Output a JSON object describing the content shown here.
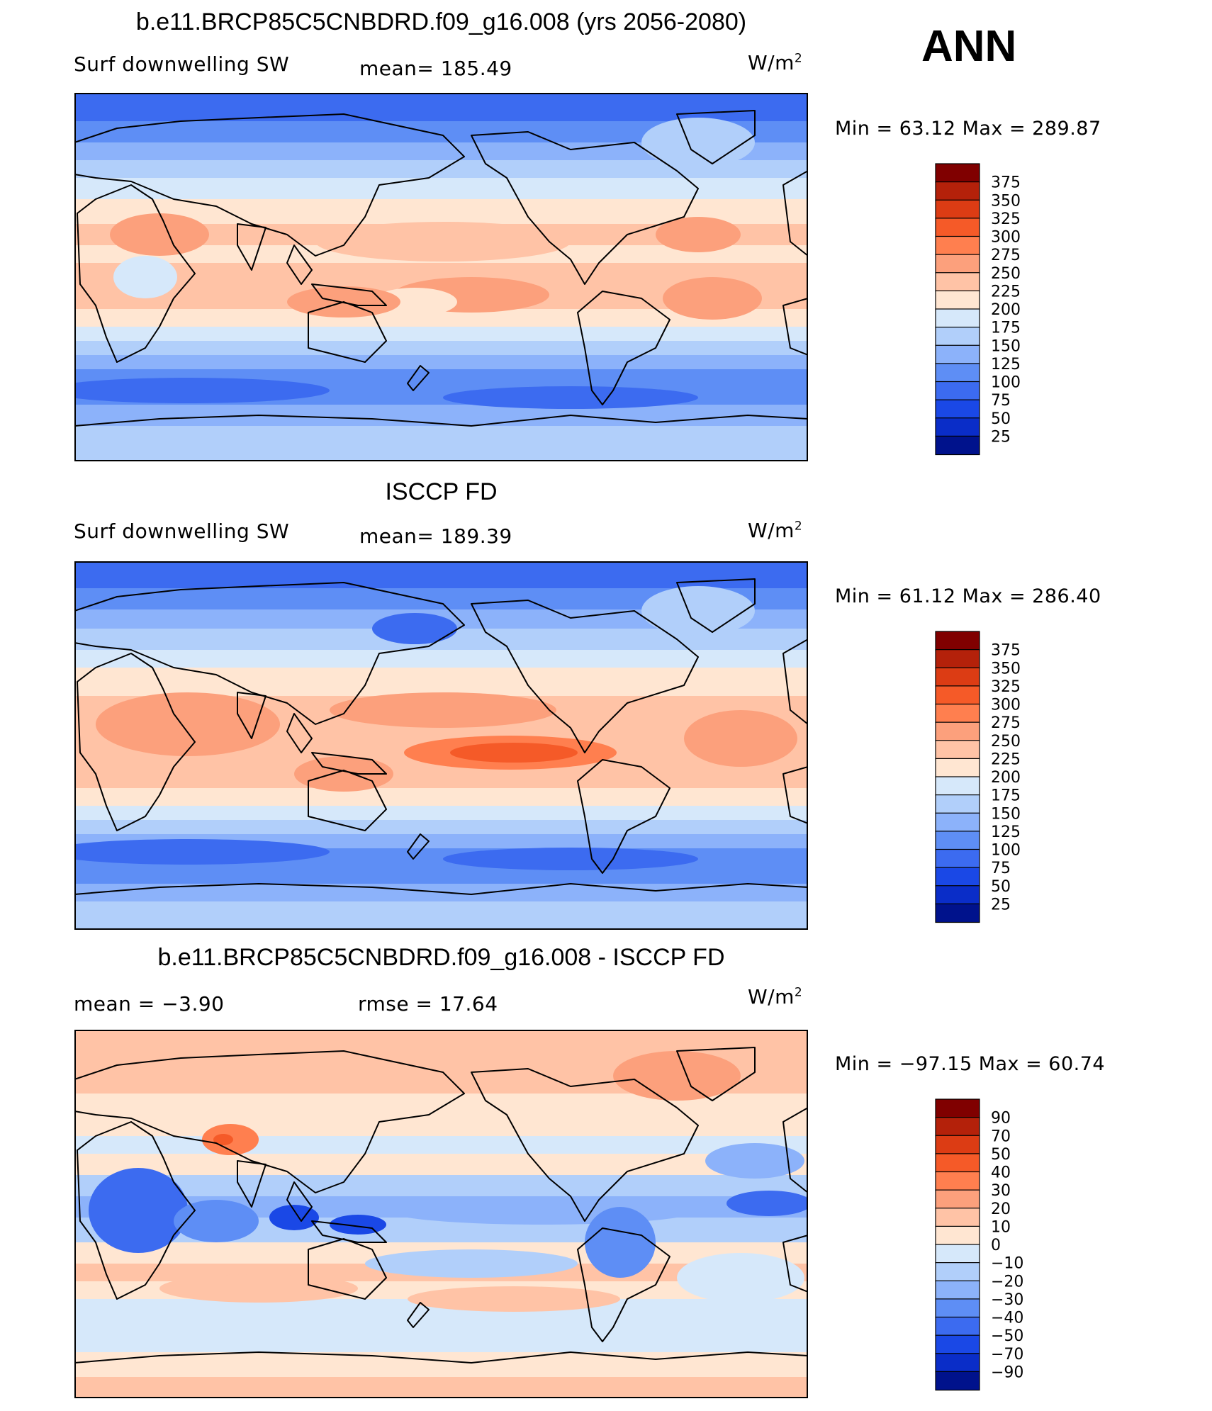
{
  "figure": {
    "season": "ANN",
    "units_base": "W/m",
    "units_exp": "2"
  },
  "panels": [
    {
      "title": "b.e11.BRCP85C5CNBDRD.f09_g16.008 (yrs 2056-2080)",
      "variable": "Surf  downwelling SW",
      "stat1": "mean=  185.49",
      "stat2": "",
      "minmax": "Min  =    63.12  Max  =  289.87"
    },
    {
      "title": "ISCCP FD",
      "variable": "Surf  downwelling SW",
      "stat1": "mean=  189.39",
      "stat2": "",
      "minmax": "Min  =    61.12  Max  =  286.40"
    },
    {
      "title": "b.e11.BRCP85C5CNBDRD.f09_g16.008 - ISCCP FD",
      "variable": "",
      "stat1": "mean  =     −3.90",
      "stat2": "rmse  =    17.64",
      "minmax": "Min  = −97.15  Max  =    60.74"
    }
  ],
  "chart_data": [
    {
      "type": "heatmap",
      "title": "b.e11.BRCP85C5CNBDRD.f09_g16.008 (yrs 2056-2080)",
      "subtitle": "Surf  downwelling SW",
      "units": "W/m2",
      "mean": 185.49,
      "min": 63.12,
      "max": 289.87,
      "colorbar_levels": [
        375,
        350,
        325,
        300,
        275,
        250,
        225,
        200,
        175,
        150,
        125,
        100,
        75,
        50,
        25
      ],
      "colorbar_colors": [
        "#800000",
        "#B4210A",
        "#DC3C14",
        "#F55A28",
        "#FF7F4F",
        "#FCA07C",
        "#FFC3A6",
        "#FFE6D2",
        "#D6E8FA",
        "#B1CFFA",
        "#8CB2FA",
        "#5E8EF5",
        "#3C6BF0",
        "#1A48E6",
        "#0A2DC8",
        "#00128C"
      ],
      "latitude_band_means": [
        {
          "lat": 80,
          "value": 85
        },
        {
          "lat": 65,
          "value": 115
        },
        {
          "lat": 50,
          "value": 145
        },
        {
          "lat": 35,
          "value": 195
        },
        {
          "lat": 20,
          "value": 230
        },
        {
          "lat": 5,
          "value": 210
        },
        {
          "lat": -10,
          "value": 225
        },
        {
          "lat": -25,
          "value": 230
        },
        {
          "lat": -40,
          "value": 175
        },
        {
          "lat": -50,
          "value": 120
        },
        {
          "lat": -60,
          "value": 85
        },
        {
          "lat": -75,
          "value": 140
        }
      ]
    },
    {
      "type": "heatmap",
      "title": "ISCCP FD",
      "subtitle": "Surf  downwelling SW",
      "units": "W/m2",
      "mean": 189.39,
      "min": 61.12,
      "max": 286.4,
      "colorbar_levels": [
        375,
        350,
        325,
        300,
        275,
        250,
        225,
        200,
        175,
        150,
        125,
        100,
        75,
        50,
        25
      ],
      "colorbar_colors": [
        "#800000",
        "#B4210A",
        "#DC3C14",
        "#F55A28",
        "#FF7F4F",
        "#FCA07C",
        "#FFC3A6",
        "#FFE6D2",
        "#D6E8FA",
        "#B1CFFA",
        "#8CB2FA",
        "#5E8EF5",
        "#3C6BF0",
        "#1A48E6",
        "#0A2DC8",
        "#00128C"
      ],
      "latitude_band_means": [
        {
          "lat": 80,
          "value": 80
        },
        {
          "lat": 65,
          "value": 110
        },
        {
          "lat": 50,
          "value": 140
        },
        {
          "lat": 35,
          "value": 200
        },
        {
          "lat": 20,
          "value": 235
        },
        {
          "lat": 5,
          "value": 225
        },
        {
          "lat": -10,
          "value": 240
        },
        {
          "lat": -25,
          "value": 235
        },
        {
          "lat": -40,
          "value": 180
        },
        {
          "lat": -50,
          "value": 125
        },
        {
          "lat": -60,
          "value": 85
        },
        {
          "lat": -75,
          "value": 135
        }
      ]
    },
    {
      "type": "heatmap",
      "title": "b.e11.BRCP85C5CNBDRD.f09_g16.008 - ISCCP FD",
      "units": "W/m2",
      "mean": -3.9,
      "rmse": 17.64,
      "min": -97.15,
      "max": 60.74,
      "colorbar_levels": [
        90,
        70,
        50,
        40,
        30,
        20,
        10,
        0,
        -10,
        -20,
        -30,
        -40,
        -50,
        -70,
        -90
      ],
      "colorbar_labels": [
        "90",
        "70",
        "50",
        "40",
        "30",
        "20",
        "10",
        "0",
        "−10",
        "−20",
        "−30",
        "−40",
        "−50",
        "−70",
        "−90"
      ],
      "colorbar_colors": [
        "#800000",
        "#B4210A",
        "#DC3C14",
        "#F55A28",
        "#FF7F4F",
        "#FCA07C",
        "#FFC3A6",
        "#FFE6D2",
        "#D6E8FA",
        "#B1CFFA",
        "#8CB2FA",
        "#5E8EF5",
        "#3C6BF0",
        "#1A48E6",
        "#0A2DC8",
        "#00128C"
      ],
      "latitude_band_means": [
        {
          "lat": 75,
          "value": 15
        },
        {
          "lat": 55,
          "value": 12
        },
        {
          "lat": 40,
          "value": 15
        },
        {
          "lat": 25,
          "value": 5
        },
        {
          "lat": 10,
          "value": -15
        },
        {
          "lat": 0,
          "value": -30
        },
        {
          "lat": -10,
          "value": -20
        },
        {
          "lat": -25,
          "value": 5
        },
        {
          "lat": -40,
          "value": 12
        },
        {
          "lat": -55,
          "value": -5
        },
        {
          "lat": -70,
          "value": 10
        }
      ]
    }
  ]
}
